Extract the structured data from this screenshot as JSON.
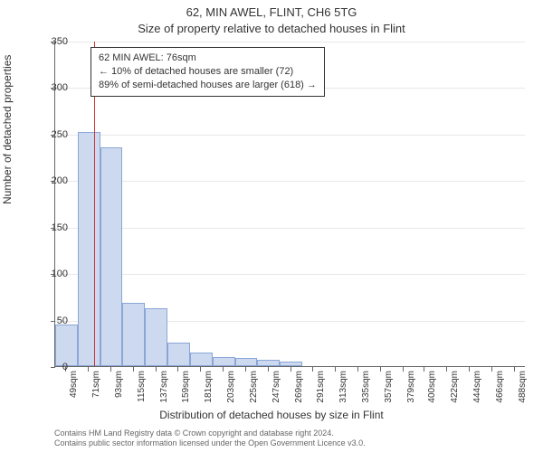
{
  "title_main": "62, MIN AWEL, FLINT, CH6 5TG",
  "title_sub": "Size of property relative to detached houses in Flint",
  "y_axis_label": "Number of detached properties",
  "x_axis_label": "Distribution of detached houses by size in Flint",
  "annotation": {
    "line1": "62 MIN AWEL: 76sqm",
    "line2": "← 10% of detached houses are smaller (72)",
    "line3": "89% of semi-detached houses are larger (618) →"
  },
  "footer": {
    "line1": "Contains HM Land Registry data © Crown copyright and database right 2024.",
    "line2": "Contains public sector information licensed under the Open Government Licence v3.0."
  },
  "chart": {
    "type": "histogram",
    "background_color": "#ffffff",
    "grid_color": "#e8e8e8",
    "axis_color": "#666666",
    "bar_fill": "#cdd9ef",
    "bar_stroke": "#8aa6d6",
    "ref_line_color": "#cc3333",
    "ref_line_x": 76,
    "x_min": 38,
    "x_max": 499,
    "y_min": 0,
    "y_max": 350,
    "y_ticks": [
      0,
      50,
      100,
      150,
      200,
      250,
      300,
      350
    ],
    "x_ticks": [
      49,
      71,
      93,
      115,
      137,
      159,
      181,
      203,
      225,
      247,
      269,
      291,
      313,
      335,
      357,
      379,
      400,
      422,
      444,
      466,
      488
    ],
    "x_tick_unit": "sqm",
    "bin_width": 22,
    "bars": [
      {
        "x_start": 38,
        "value": 45
      },
      {
        "x_start": 60,
        "value": 252
      },
      {
        "x_start": 82,
        "value": 235
      },
      {
        "x_start": 104,
        "value": 68
      },
      {
        "x_start": 126,
        "value": 62
      },
      {
        "x_start": 148,
        "value": 25
      },
      {
        "x_start": 170,
        "value": 15
      },
      {
        "x_start": 192,
        "value": 10
      },
      {
        "x_start": 214,
        "value": 9
      },
      {
        "x_start": 236,
        "value": 7
      },
      {
        "x_start": 258,
        "value": 5
      },
      {
        "x_start": 280,
        "value": 0
      },
      {
        "x_start": 302,
        "value": 0
      },
      {
        "x_start": 324,
        "value": 0
      },
      {
        "x_start": 346,
        "value": 0
      },
      {
        "x_start": 368,
        "value": 0
      },
      {
        "x_start": 390,
        "value": 0
      },
      {
        "x_start": 412,
        "value": 0
      },
      {
        "x_start": 434,
        "value": 0
      },
      {
        "x_start": 456,
        "value": 0
      },
      {
        "x_start": 478,
        "value": 0
      }
    ],
    "title_fontsize": 13,
    "label_fontsize": 12,
    "tick_fontsize": 11
  }
}
